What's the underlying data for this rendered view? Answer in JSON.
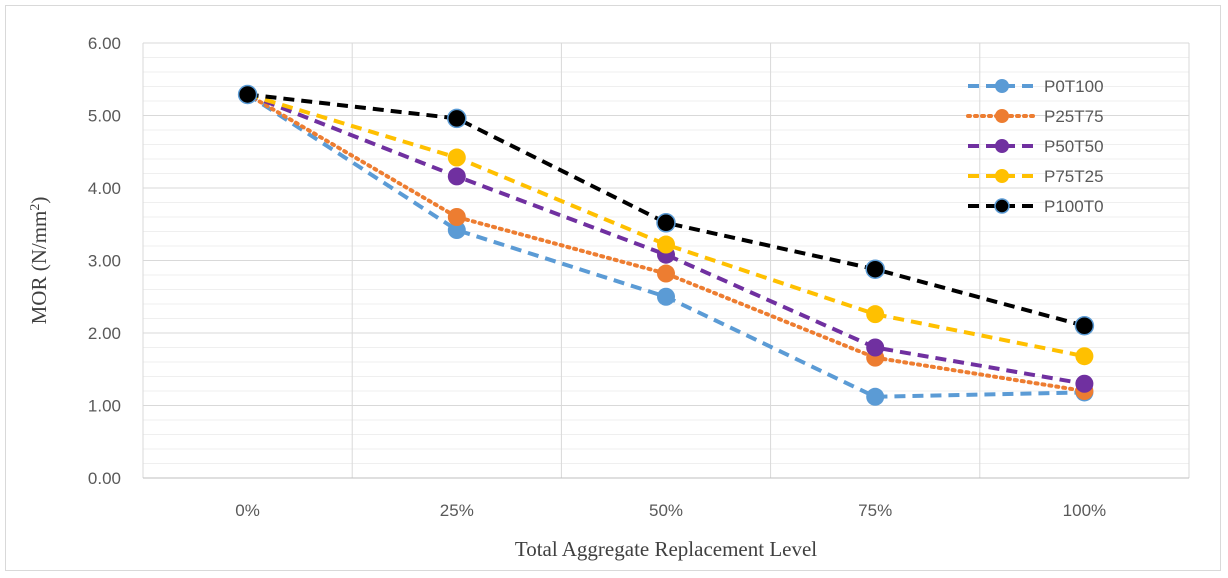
{
  "chart_data": {
    "type": "line",
    "categories": [
      "0%",
      "25%",
      "50%",
      "75%",
      "100%"
    ],
    "xlabel": "Total Aggregate Replacement Level",
    "ylabel": "MOR (N/mm",
    "ylabel_superscript": "2",
    "ylabel_suffix": ")",
    "ylim": [
      0,
      6
    ],
    "yticks": [
      "0.00",
      "1.00",
      "2.00",
      "3.00",
      "4.00",
      "5.00",
      "6.00"
    ],
    "grid": true,
    "legend_position": "right",
    "series": [
      {
        "name": "P0T100",
        "color": "#5b9bd5",
        "dash": "dashed",
        "values": [
          5.29,
          3.42,
          2.5,
          1.12,
          1.18
        ]
      },
      {
        "name": "P25T75",
        "color": "#ed7d31",
        "dash": "dotted",
        "values": [
          5.29,
          3.6,
          2.82,
          1.66,
          1.2
        ]
      },
      {
        "name": "P50T50",
        "color": "#7030a0",
        "dash": "dashed",
        "values": [
          5.29,
          4.16,
          3.08,
          1.8,
          1.3
        ]
      },
      {
        "name": "P75T25",
        "color": "#ffc000",
        "dash": "dashed",
        "values": [
          5.29,
          4.42,
          3.22,
          2.26,
          1.68
        ]
      },
      {
        "name": "P100T0",
        "color": "#000000",
        "dash": "dashed",
        "values": [
          5.29,
          4.96,
          3.52,
          2.88,
          2.1
        ]
      }
    ]
  }
}
